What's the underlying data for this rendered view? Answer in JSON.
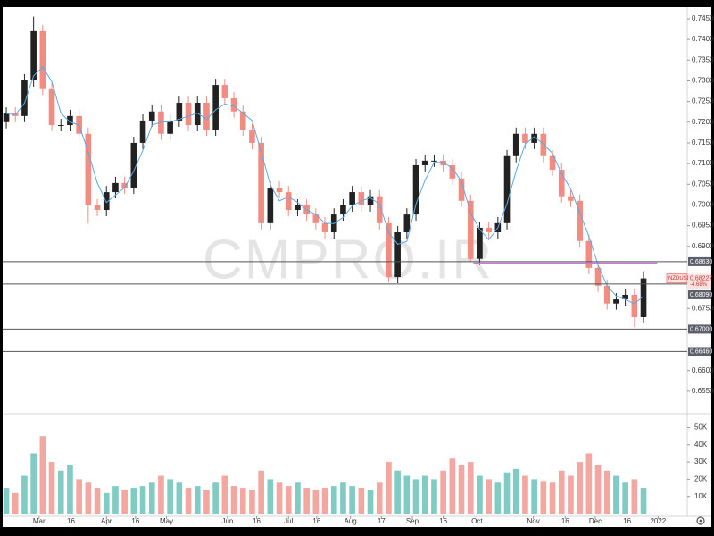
{
  "chart_data": {
    "type": "candlestick",
    "x": [
      0,
      1,
      2,
      3,
      4,
      5,
      6,
      7,
      8,
      9,
      10,
      11,
      12,
      13,
      14,
      15,
      16,
      17,
      18,
      19,
      20,
      21,
      22,
      23,
      24,
      25,
      26,
      27,
      28,
      29,
      30,
      31,
      32,
      33,
      34,
      35,
      36,
      37,
      38,
      39,
      40,
      41,
      42,
      43,
      44,
      45,
      46,
      47,
      48,
      49,
      50,
      51,
      52,
      53,
      54,
      55,
      56,
      57,
      58,
      59,
      60,
      61,
      62,
      63,
      64,
      65,
      66,
      67,
      68,
      69,
      70
    ],
    "open": [
      0.72,
      0.7221,
      0.7215,
      0.7301,
      0.742,
      0.728,
      0.7193,
      0.7193,
      0.7215,
      0.7172,
      0.6999,
      0.6988,
      0.7031,
      0.7053,
      0.7042,
      0.715,
      0.7204,
      0.7226,
      0.7172,
      0.7204,
      0.7247,
      0.7193,
      0.7247,
      0.7182,
      0.729,
      0.7258,
      0.7226,
      0.7182,
      0.715,
      0.6956,
      0.7042,
      0.7031,
      0.6988,
      0.6999,
      0.6977,
      0.6956,
      0.6934,
      0.6977,
      0.6999,
      0.7031,
      0.6999,
      0.7021,
      0.6956,
      0.6826,
      0.6934,
      0.6977,
      0.7096,
      0.7107,
      0.7107,
      0.7096,
      0.7064,
      0.701,
      0.687,
      0.6945,
      0.6934,
      0.6956,
      0.7118,
      0.7172,
      0.715,
      0.7172,
      0.7118,
      0.7085,
      0.7021,
      0.701,
      0.6913,
      0.6848,
      0.6805,
      0.6762,
      0.6772,
      0.6783,
      0.6729
    ],
    "high": [
      0.7236,
      0.7236,
      0.7316,
      0.7455,
      0.7435,
      0.7295,
      0.7208,
      0.723,
      0.723,
      0.7187,
      0.7014,
      0.7046,
      0.7068,
      0.7068,
      0.7165,
      0.7219,
      0.7241,
      0.7241,
      0.7219,
      0.7262,
      0.7262,
      0.7262,
      0.7262,
      0.7305,
      0.7305,
      0.7273,
      0.7241,
      0.7197,
      0.7165,
      0.7057,
      0.7057,
      0.7046,
      0.7014,
      0.7014,
      0.6992,
      0.6971,
      0.6992,
      0.7014,
      0.7046,
      0.7046,
      0.7036,
      0.7036,
      0.6971,
      0.6949,
      0.6992,
      0.7111,
      0.7122,
      0.7122,
      0.7122,
      0.7111,
      0.7079,
      0.7025,
      0.696,
      0.696,
      0.6971,
      0.7133,
      0.7187,
      0.7187,
      0.7187,
      0.7187,
      0.7133,
      0.71,
      0.7036,
      0.7025,
      0.6928,
      0.6863,
      0.682,
      0.6787,
      0.6798,
      0.6798,
      0.684
    ],
    "low": [
      0.7185,
      0.72,
      0.72,
      0.7286,
      0.7265,
      0.7178,
      0.7178,
      0.7178,
      0.7157,
      0.6955,
      0.6973,
      0.6973,
      0.7016,
      0.7027,
      0.7027,
      0.7135,
      0.7189,
      0.7157,
      0.7157,
      0.7189,
      0.7178,
      0.7178,
      0.7167,
      0.7167,
      0.7243,
      0.7211,
      0.7167,
      0.7135,
      0.6941,
      0.6941,
      0.7016,
      0.6973,
      0.6973,
      0.6962,
      0.6941,
      0.6919,
      0.6919,
      0.6962,
      0.6984,
      0.6984,
      0.6984,
      0.6941,
      0.6813,
      0.6811,
      0.6919,
      0.6962,
      0.7081,
      0.7092,
      0.7081,
      0.7049,
      0.6995,
      0.6862,
      0.6855,
      0.6919,
      0.6919,
      0.6941,
      0.7103,
      0.7135,
      0.7135,
      0.7103,
      0.707,
      0.7006,
      0.6995,
      0.6898,
      0.6833,
      0.679,
      0.6747,
      0.6747,
      0.6757,
      0.6705,
      0.6714
    ],
    "close": [
      0.7221,
      0.7215,
      0.7301,
      0.742,
      0.728,
      0.7193,
      0.7193,
      0.7215,
      0.7172,
      0.6999,
      0.6988,
      0.7031,
      0.7053,
      0.7042,
      0.715,
      0.7204,
      0.7226,
      0.7172,
      0.7204,
      0.7247,
      0.7193,
      0.7247,
      0.7182,
      0.729,
      0.7258,
      0.7226,
      0.7182,
      0.715,
      0.6956,
      0.7042,
      0.7031,
      0.6988,
      0.6999,
      0.6977,
      0.6956,
      0.6934,
      0.6977,
      0.6999,
      0.7031,
      0.6999,
      0.7021,
      0.6956,
      0.6826,
      0.6934,
      0.6977,
      0.7096,
      0.7107,
      0.7107,
      0.7096,
      0.7064,
      0.701,
      0.687,
      0.6945,
      0.6934,
      0.6956,
      0.7118,
      0.7172,
      0.715,
      0.7172,
      0.7118,
      0.7085,
      0.7021,
      0.701,
      0.6913,
      0.6848,
      0.6805,
      0.6762,
      0.6772,
      0.6783,
      0.6729,
      0.68227
    ],
    "ma": [
      0.7221,
      0.7218,
      0.7246,
      0.7312,
      0.7334,
      0.7298,
      0.7222,
      0.72,
      0.7193,
      0.7128,
      0.7053,
      0.7006,
      0.7024,
      0.7042,
      0.7082,
      0.7132,
      0.7193,
      0.72,
      0.7201,
      0.7207,
      0.7215,
      0.7222,
      0.7207,
      0.723,
      0.7244,
      0.7239,
      0.7222,
      0.7204,
      0.7128,
      0.7049,
      0.701,
      0.702,
      0.7006,
      0.6988,
      0.6977,
      0.6956,
      0.6955,
      0.697,
      0.6998,
      0.701,
      0.7017,
      0.7002,
      0.6934,
      0.6905,
      0.6912,
      0.7002,
      0.706,
      0.7103,
      0.7103,
      0.7089,
      0.7057,
      0.6981,
      0.6941,
      0.6916,
      0.6945,
      0.7003,
      0.7082,
      0.7147,
      0.7165,
      0.7147,
      0.7125,
      0.7075,
      0.7039,
      0.6981,
      0.6924,
      0.6855,
      0.6805,
      0.678,
      0.6772,
      0.6761,
      0.678
    ],
    "up_color": "#222222",
    "down_color": "#f28b82",
    "ma_color": "#5aa9e6",
    "xlim": [
      -0.2,
      74.8
    ],
    "xticks": [
      {
        "value": 3.6,
        "label": "Mar"
      },
      {
        "value": 7.1,
        "label": "16"
      },
      {
        "value": 11.0,
        "label": "Apr"
      },
      {
        "value": 14.2,
        "label": "16"
      },
      {
        "value": 17.6,
        "label": "May"
      },
      {
        "value": 24.3,
        "label": "Jun"
      },
      {
        "value": 27.5,
        "label": "16"
      },
      {
        "value": 31.0,
        "label": "Jul"
      },
      {
        "value": 34.1,
        "label": "16"
      },
      {
        "value": 37.8,
        "label": "Aug"
      },
      {
        "value": 41.2,
        "label": "17"
      },
      {
        "value": 44.6,
        "label": "Sep"
      },
      {
        "value": 48.0,
        "label": "16"
      },
      {
        "value": 51.7,
        "label": "Oct"
      },
      {
        "value": 57.9,
        "label": "Nov"
      },
      {
        "value": 61.4,
        "label": "16"
      },
      {
        "value": 64.7,
        "label": "Dec"
      },
      {
        "value": 68.2,
        "label": "16"
      },
      {
        "value": 71.6,
        "label": "2022"
      }
    ],
    "ylim": [
      0.6498,
      0.7478
    ],
    "yticks": [
      {
        "value": 0.745,
        "label": "0.74500"
      },
      {
        "value": 0.74,
        "label": "0.74000"
      },
      {
        "value": 0.735,
        "label": "0.73500"
      },
      {
        "value": 0.73,
        "label": "0.73000"
      },
      {
        "value": 0.725,
        "label": "0.72500"
      },
      {
        "value": 0.72,
        "label": "0.72000"
      },
      {
        "value": 0.715,
        "label": "0.71500"
      },
      {
        "value": 0.71,
        "label": "0.71000"
      },
      {
        "value": 0.705,
        "label": "0.70500"
      },
      {
        "value": 0.7,
        "label": "0.70000"
      },
      {
        "value": 0.695,
        "label": "0.69500"
      },
      {
        "value": 0.69,
        "label": "0.69000"
      },
      {
        "value": 0.675,
        "label": "0.67500"
      },
      {
        "value": 0.66,
        "label": "0.66000"
      },
      {
        "value": 0.655,
        "label": "0.65500"
      }
    ],
    "levels": [
      {
        "value": 0.6863,
        "label": "0.68630"
      },
      {
        "value": 0.6809,
        "label": "0.68090"
      },
      {
        "value": 0.67,
        "label": "0.67000"
      },
      {
        "value": 0.6646,
        "label": "0.66460"
      }
    ],
    "trendline": {
      "value": 0.6859,
      "x": [
        51.3,
        71.5
      ],
      "color": "#c77dd6"
    },
    "price_label": {
      "symbol": "NZDUSD",
      "value": 0.68227,
      "change": {
        "value": -4.68,
        "label": "-4.68%"
      }
    },
    "watermark": "CMPRO.IR",
    "volume": {
      "values": [
        15000,
        12000,
        22000,
        35000,
        45000,
        30000,
        25000,
        28000,
        20000,
        18000,
        15000,
        12000,
        16000,
        14000,
        15000,
        16000,
        18000,
        22000,
        20000,
        18000,
        15000,
        16000,
        14000,
        18000,
        22000,
        16000,
        15000,
        14000,
        25000,
        20000,
        18000,
        16000,
        18000,
        15000,
        14000,
        15000,
        16000,
        18000,
        16000,
        15000,
        14000,
        18000,
        30000,
        25000,
        22000,
        20000,
        22000,
        20000,
        25000,
        32000,
        28000,
        30000,
        22000,
        20000,
        18000,
        24000,
        26000,
        22000,
        20000,
        19000,
        18000,
        25000,
        22000,
        30000,
        35000,
        28000,
        25000,
        22000,
        18000,
        20000,
        15000
      ],
      "up_color": "#80cbc4",
      "down_color": "#f4a6a0",
      "ylim": [
        0,
        57000
      ],
      "yticks": [
        {
          "value": 10000,
          "label": "10K"
        },
        {
          "value": 20000,
          "label": "20K"
        },
        {
          "value": 30000,
          "label": "30K"
        },
        {
          "value": 40000,
          "label": "40K"
        },
        {
          "value": 50000,
          "label": "50K"
        }
      ]
    }
  }
}
